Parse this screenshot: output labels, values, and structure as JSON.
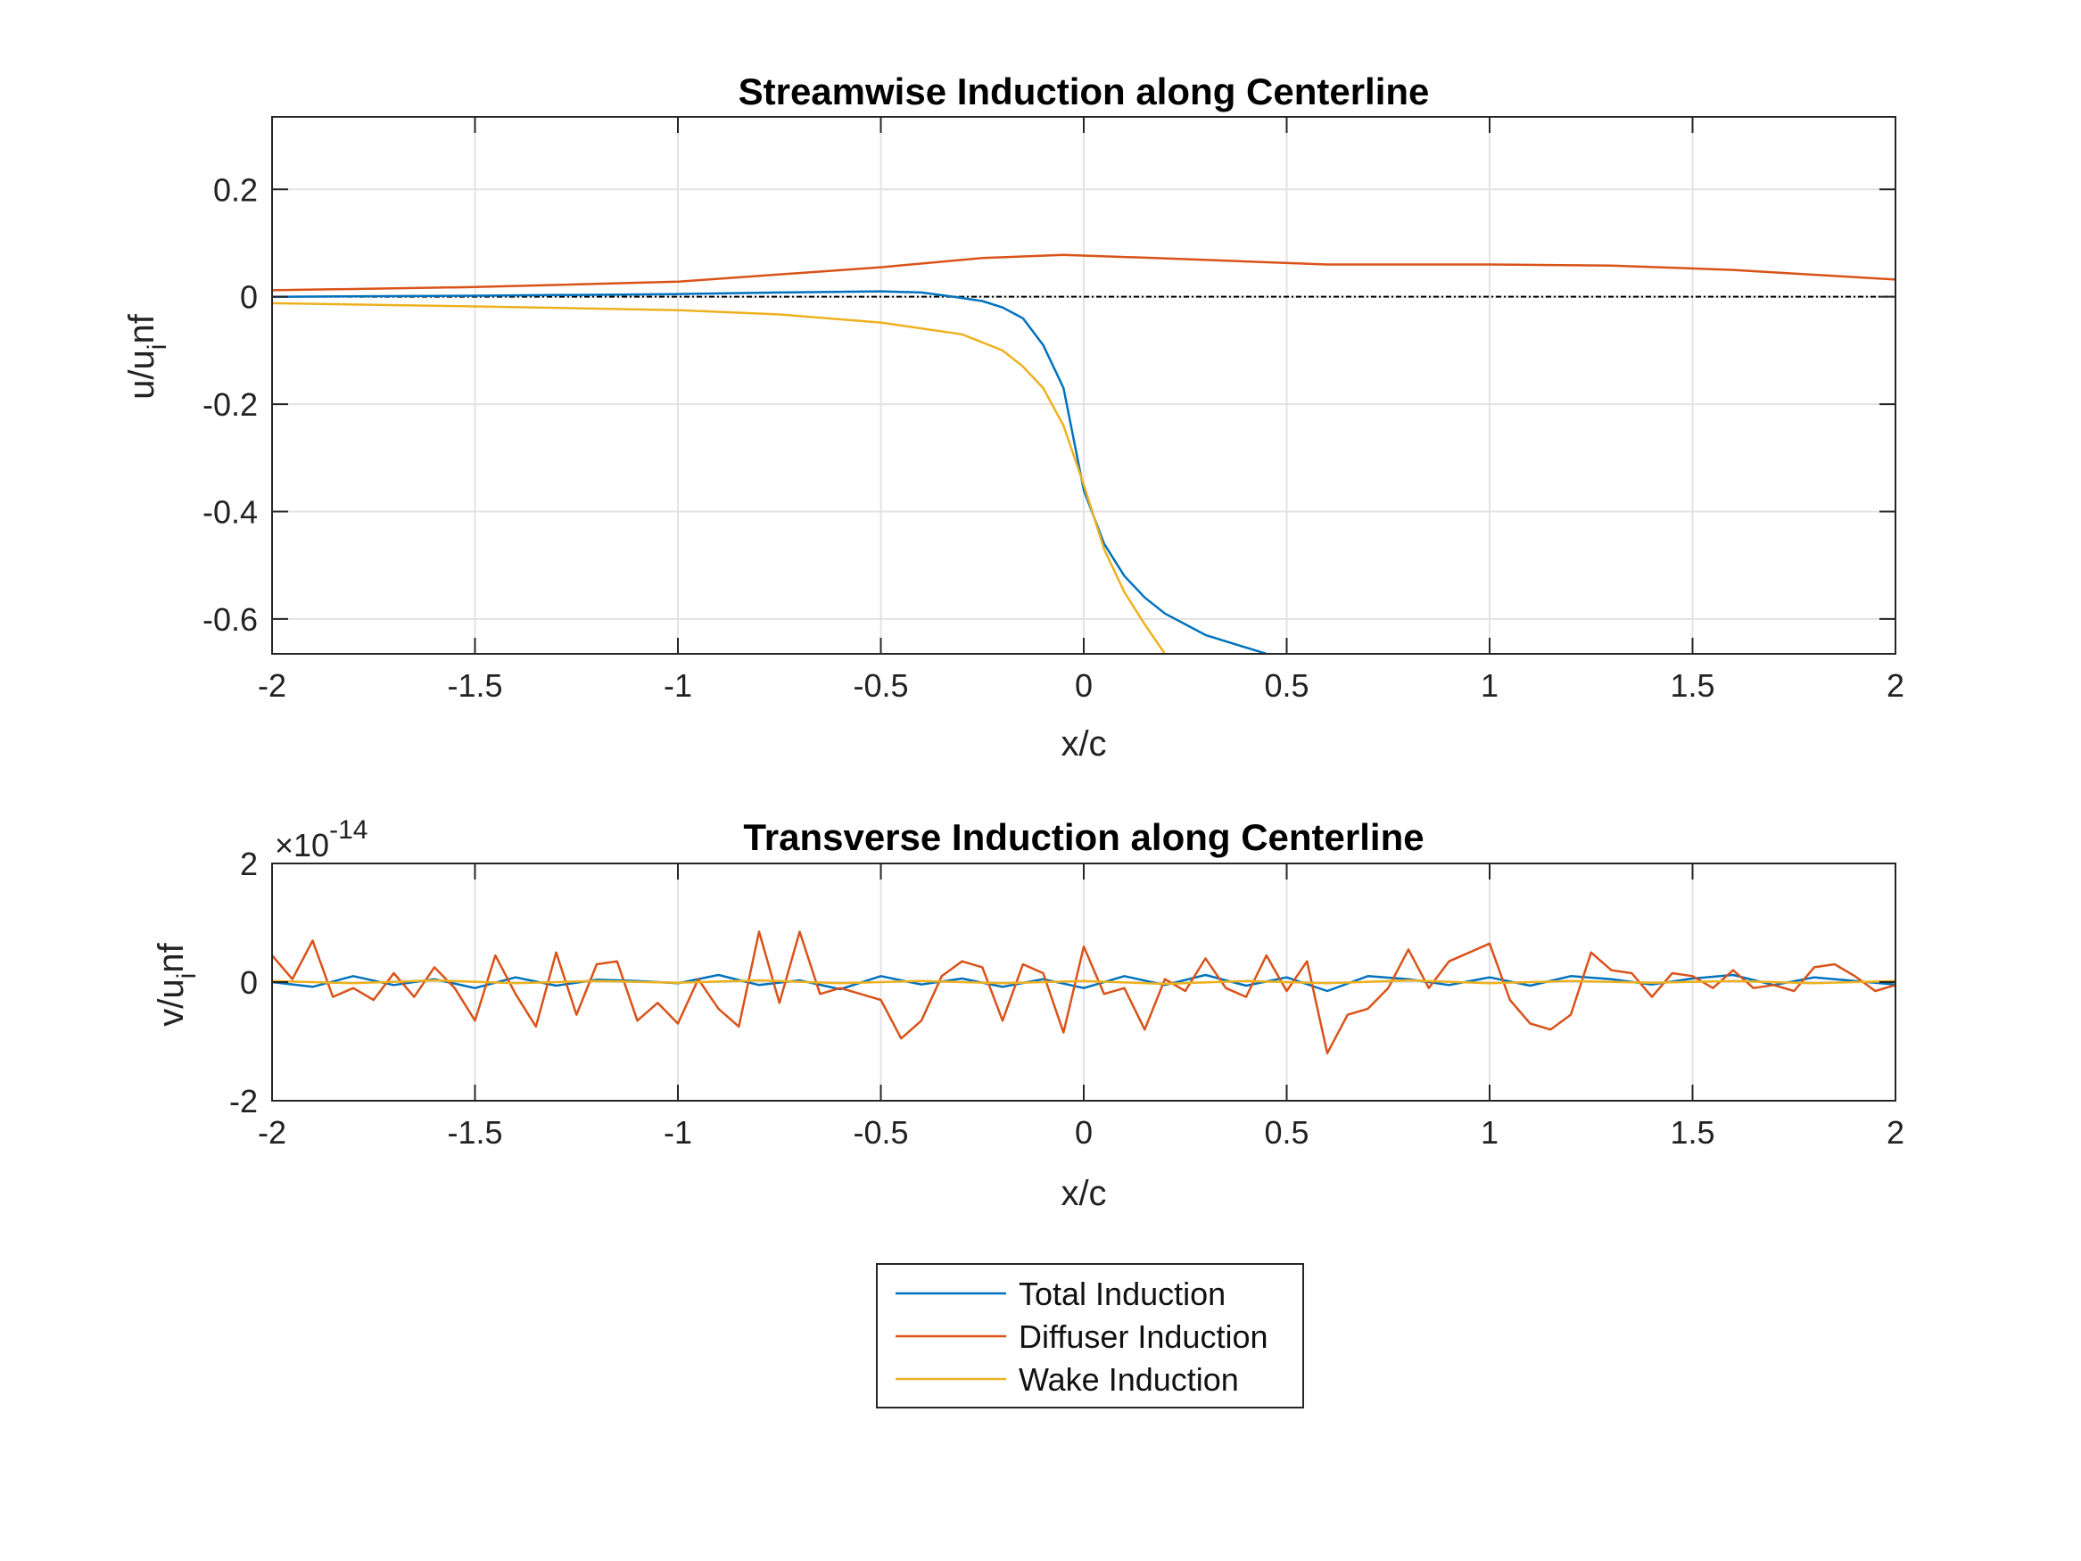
{
  "colors": {
    "total": "#0072BD",
    "diffuser": "#D95319",
    "wake": "#EDB120",
    "grid": "#e3e3e3",
    "axis": "#262626",
    "zero_line": "#000000"
  },
  "legend": {
    "placement": "bottom-center",
    "entries": [
      "Total Induction",
      "Diffuser Induction",
      "Wake Induction"
    ]
  },
  "chart_data": [
    {
      "type": "line",
      "title": "Streamwise Induction along Centerline",
      "xlabel": "x/c",
      "ylabel_main": "u/u",
      "ylabel_sub": "i",
      "ylabel_tail": "nf",
      "xlim": [
        -2,
        2
      ],
      "ylim": [
        -0.665,
        0.335
      ],
      "xticks": [
        -2,
        -1.5,
        -1,
        -0.5,
        0,
        0.5,
        1,
        1.5,
        2
      ],
      "xtick_labels": [
        "-2",
        "-1.5",
        "-1",
        "-0.5",
        "0",
        "0.5",
        "1",
        "1.5",
        "2"
      ],
      "yticks": [
        -0.6,
        -0.4,
        -0.2,
        0,
        0.2
      ],
      "ytick_labels": [
        "-0.6",
        "-0.4",
        "-0.2",
        "0",
        "0.2"
      ],
      "grid": true,
      "reference_line_y": 0,
      "series": [
        {
          "name": "Total Induction",
          "color_key": "total",
          "x": [
            -2,
            -1.5,
            -1,
            -0.75,
            -0.5,
            -0.4,
            -0.32,
            -0.25,
            -0.2,
            -0.15,
            -0.1,
            -0.05,
            0,
            0.05,
            0.1,
            0.15,
            0.2,
            0.3,
            0.45
          ],
          "y": [
            0.0,
            0.002,
            0.005,
            0.008,
            0.01,
            0.008,
            0.0,
            -0.008,
            -0.02,
            -0.04,
            -0.09,
            -0.17,
            -0.36,
            -0.46,
            -0.52,
            -0.56,
            -0.59,
            -0.63,
            -0.665
          ]
        },
        {
          "name": "Diffuser Induction",
          "color_key": "diffuser",
          "x": [
            -2,
            -1.5,
            -1,
            -0.5,
            -0.25,
            -0.05,
            0.25,
            0.6,
            1.0,
            1.3,
            1.6,
            2.0
          ],
          "y": [
            0.012,
            0.018,
            0.028,
            0.055,
            0.072,
            0.078,
            0.07,
            0.06,
            0.06,
            0.058,
            0.05,
            0.032
          ]
        },
        {
          "name": "Wake Induction",
          "color_key": "wake",
          "x": [
            -2,
            -1.5,
            -1,
            -0.75,
            -0.5,
            -0.3,
            -0.2,
            -0.15,
            -0.1,
            -0.05,
            0,
            0.05,
            0.1,
            0.15,
            0.2
          ],
          "y": [
            -0.012,
            -0.018,
            -0.025,
            -0.033,
            -0.048,
            -0.07,
            -0.1,
            -0.13,
            -0.17,
            -0.24,
            -0.35,
            -0.47,
            -0.55,
            -0.61,
            -0.665
          ]
        }
      ]
    },
    {
      "type": "line",
      "title": "Transverse Induction along Centerline",
      "xlabel": "x/c",
      "ylabel_main": "v/u",
      "ylabel_sub": "i",
      "ylabel_tail": "nf",
      "exponent_base": "×10",
      "exponent_power": "-14",
      "xlim": [
        -2,
        2
      ],
      "ylim": [
        -2,
        2
      ],
      "xticks": [
        -2,
        -1.5,
        -1,
        -0.5,
        0,
        0.5,
        1,
        1.5,
        2
      ],
      "xtick_labels": [
        "-2",
        "-1.5",
        "-1",
        "-0.5",
        "0",
        "0.5",
        "1",
        "1.5",
        "2"
      ],
      "yticks": [
        -2,
        0,
        2
      ],
      "ytick_labels": [
        "-2",
        "0",
        "2"
      ],
      "grid": true,
      "series": [
        {
          "name": "Total Induction",
          "color_key": "total",
          "x": [
            -2.0,
            -1.9,
            -1.8,
            -1.7,
            -1.6,
            -1.5,
            -1.4,
            -1.3,
            -1.2,
            -1.1,
            -1.0,
            -0.9,
            -0.8,
            -0.7,
            -0.6,
            -0.5,
            -0.4,
            -0.3,
            -0.2,
            -0.1,
            0.0,
            0.1,
            0.2,
            0.3,
            0.4,
            0.5,
            0.6,
            0.7,
            0.8,
            0.9,
            1.0,
            1.1,
            1.2,
            1.3,
            1.4,
            1.5,
            1.6,
            1.7,
            1.8,
            1.9,
            2.0
          ],
          "y": [
            0.0,
            -0.08,
            0.1,
            -0.05,
            0.05,
            -0.1,
            0.08,
            -0.06,
            0.04,
            0.02,
            -0.02,
            0.12,
            -0.05,
            0.03,
            -0.12,
            0.1,
            -0.04,
            0.06,
            -0.08,
            0.05,
            -0.1,
            0.1,
            -0.05,
            0.12,
            -0.06,
            0.08,
            -0.15,
            0.1,
            0.05,
            -0.05,
            0.08,
            -0.06,
            0.1,
            0.05,
            -0.04,
            0.06,
            0.12,
            -0.05,
            0.08,
            0.02,
            -0.04
          ]
        },
        {
          "name": "Diffuser Induction",
          "color_key": "diffuser",
          "x": [
            -2.0,
            -1.95,
            -1.9,
            -1.85,
            -1.8,
            -1.75,
            -1.7,
            -1.65,
            -1.6,
            -1.55,
            -1.5,
            -1.45,
            -1.4,
            -1.35,
            -1.3,
            -1.25,
            -1.2,
            -1.15,
            -1.1,
            -1.05,
            -1.0,
            -0.95,
            -0.9,
            -0.85,
            -0.8,
            -0.75,
            -0.7,
            -0.65,
            -0.6,
            -0.55,
            -0.5,
            -0.45,
            -0.4,
            -0.35,
            -0.3,
            -0.25,
            -0.2,
            -0.15,
            -0.1,
            -0.05,
            0.0,
            0.05,
            0.1,
            0.15,
            0.2,
            0.25,
            0.3,
            0.35,
            0.4,
            0.45,
            0.5,
            0.55,
            0.6,
            0.65,
            0.7,
            0.75,
            0.8,
            0.85,
            0.9,
            0.95,
            1.0,
            1.05,
            1.1,
            1.15,
            1.2,
            1.25,
            1.3,
            1.35,
            1.4,
            1.45,
            1.5,
            1.55,
            1.6,
            1.65,
            1.7,
            1.75,
            1.8,
            1.85,
            1.9,
            1.95,
            2.0
          ],
          "y": [
            0.45,
            0.05,
            0.7,
            -0.25,
            -0.1,
            -0.3,
            0.15,
            -0.25,
            0.25,
            -0.1,
            -0.65,
            0.45,
            -0.2,
            -0.75,
            0.5,
            -0.55,
            0.3,
            0.35,
            -0.65,
            -0.35,
            -0.7,
            0.05,
            -0.45,
            -0.75,
            0.85,
            -0.35,
            0.85,
            -0.2,
            -0.1,
            -0.2,
            -0.3,
            -0.95,
            -0.65,
            0.1,
            0.35,
            0.25,
            -0.65,
            0.3,
            0.15,
            -0.85,
            0.6,
            -0.2,
            -0.1,
            -0.8,
            0.05,
            -0.15,
            0.4,
            -0.1,
            -0.25,
            0.45,
            -0.15,
            0.35,
            -1.2,
            -0.55,
            -0.45,
            -0.1,
            0.55,
            -0.1,
            0.35,
            0.5,
            0.65,
            -0.3,
            -0.7,
            -0.8,
            -0.55,
            0.5,
            0.2,
            0.15,
            -0.25,
            0.15,
            0.1,
            -0.1,
            0.2,
            -0.1,
            -0.05,
            -0.15,
            0.25,
            0.3,
            0.1,
            -0.15,
            -0.05
          ]
        },
        {
          "name": "Wake Induction",
          "color_key": "wake",
          "x": [
            -2.0,
            -1.8,
            -1.6,
            -1.4,
            -1.2,
            -1.0,
            -0.8,
            -0.6,
            -0.4,
            -0.2,
            0.0,
            0.2,
            0.4,
            0.6,
            0.8,
            1.0,
            1.2,
            1.4,
            1.6,
            1.8,
            2.0
          ],
          "y": [
            0.02,
            -0.02,
            0.03,
            -0.02,
            0.02,
            -0.01,
            0.03,
            -0.02,
            0.02,
            -0.02,
            0.02,
            -0.03,
            0.02,
            -0.02,
            0.03,
            -0.02,
            0.02,
            -0.01,
            0.02,
            -0.02,
            0.02
          ]
        }
      ]
    }
  ]
}
